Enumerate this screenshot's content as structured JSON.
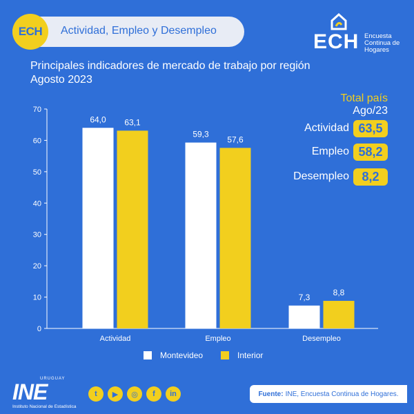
{
  "header": {
    "badge": "ECH",
    "topic": "Actividad, Empleo y Desempleo"
  },
  "brand": {
    "mark": "ECH",
    "sub1": "Encuesta",
    "sub2": "Continua de",
    "sub3": "Hogares"
  },
  "title": {
    "line1": "Principales indicadores de mercado de trabajo por región",
    "line2": "Agosto 2023"
  },
  "totals": {
    "heading": "Total país",
    "period": "Ago/23",
    "items": [
      {
        "label": "Actividad",
        "value": "63,5"
      },
      {
        "label": "Empleo",
        "value": "58,2"
      },
      {
        "label": "Desempleo",
        "value": "8,2"
      }
    ]
  },
  "colors": {
    "background": "#2f6fd8",
    "montevideo": "#ffffff",
    "interior": "#f2cf1e"
  },
  "chart_data": {
    "type": "bar",
    "categories": [
      "Actividad",
      "Empleo",
      "Desempleo"
    ],
    "series": [
      {
        "name": "Montevideo",
        "values": [
          64.0,
          59.3,
          7.3
        ],
        "labels": [
          "64,0",
          "59,3",
          "7,3"
        ]
      },
      {
        "name": "Interior",
        "values": [
          63.1,
          57.6,
          8.8
        ],
        "labels": [
          "63,1",
          "57,6",
          "8,8"
        ]
      }
    ],
    "yticks": [
      0,
      10,
      20,
      30,
      40,
      50,
      60,
      70
    ],
    "ylim": [
      0,
      70
    ],
    "grid": false,
    "legend": "bottom"
  },
  "footer": {
    "org_small": "URUGUAY",
    "org": "INE",
    "org_sub": "Instituto Nacional de Estadística",
    "social": [
      "twitter-icon",
      "youtube-icon",
      "instagram-icon",
      "facebook-icon",
      "linkedin-icon"
    ],
    "source_label": "Fuente:",
    "source_text": "INE, Encuesta Continua de Hogares."
  }
}
